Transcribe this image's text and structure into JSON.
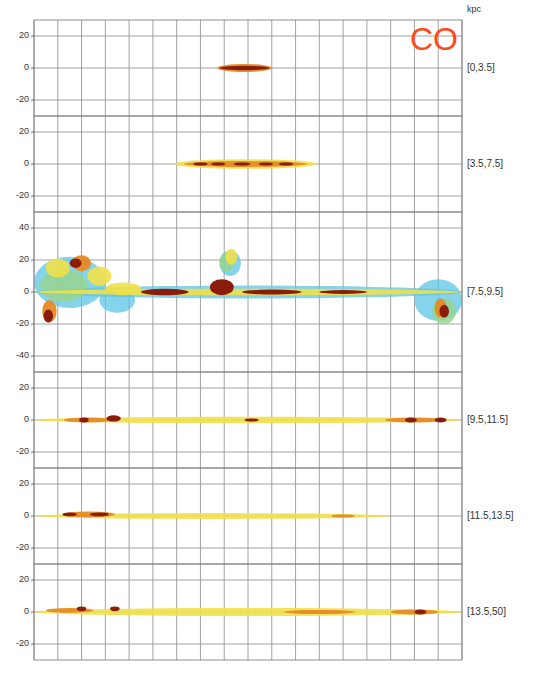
{
  "title": "CO",
  "unit_label": "kpc",
  "chart_data": [
    {
      "type": "map",
      "label": "[0,3.5]",
      "xlim": [
        180,
        -180
      ],
      "ylim": [
        -30,
        30
      ],
      "yticks": [
        -20,
        0,
        20
      ],
      "xticks": [
        180,
        160,
        140,
        120,
        100,
        80,
        60,
        40,
        20,
        0,
        -20,
        -40,
        -60,
        -80,
        -100,
        -120,
        -140,
        -160,
        -180
      ],
      "grid": true,
      "tick_labels": "y",
      "blobs": [
        {
          "l": 3,
          "b": 0,
          "dl": 23,
          "db": 2.5,
          "level": 4
        },
        {
          "l": 3,
          "b": 0,
          "dl": 21,
          "db": 1.4,
          "level": 5
        }
      ]
    },
    {
      "type": "map",
      "label": "[3.5,7.5]",
      "xlim": [
        180,
        -180
      ],
      "ylim": [
        -30,
        30
      ],
      "yticks": [
        -20,
        0,
        20
      ],
      "xticks": [
        180,
        160,
        140,
        120,
        100,
        80,
        60,
        40,
        20,
        0,
        -20,
        -40,
        -60,
        -80,
        -100,
        -120,
        -140,
        -160,
        -180
      ],
      "grid": true,
      "tick_labels": "y",
      "blobs": [
        {
          "l": 2,
          "b": 0,
          "dl": 60,
          "db": 3,
          "level": 3
        },
        {
          "l": 2,
          "b": 0,
          "dl": 52,
          "db": 1.8,
          "level": 4
        },
        {
          "l": 40,
          "b": 0,
          "dl": 6,
          "db": 1,
          "level": 5
        },
        {
          "l": 25,
          "b": 0,
          "dl": 6,
          "db": 1,
          "level": 5
        },
        {
          "l": 5,
          "b": 0,
          "dl": 7,
          "db": 1,
          "level": 5
        },
        {
          "l": -15,
          "b": 0,
          "dl": 6,
          "db": 1,
          "level": 5
        },
        {
          "l": -32,
          "b": 0,
          "dl": 6,
          "db": 1,
          "level": 5
        }
      ]
    },
    {
      "type": "map",
      "label": "[7.5,9.5]",
      "xlim": [
        180,
        -180
      ],
      "ylim": [
        -50,
        50
      ],
      "yticks": [
        -40,
        -20,
        0,
        20,
        40
      ],
      "xticks": [
        180,
        160,
        140,
        120,
        100,
        80,
        60,
        40,
        20,
        0,
        -20,
        -40,
        -60,
        -80,
        -100,
        -120,
        -140,
        -160,
        -180
      ],
      "grid": true,
      "tick_labels": "y",
      "blobs": [
        {
          "l": 150,
          "b": 6,
          "dl": 30,
          "db": 16,
          "level": 1
        },
        {
          "l": 110,
          "b": -5,
          "dl": 15,
          "db": 8,
          "level": 1
        },
        {
          "l": -160,
          "b": -5,
          "dl": 20,
          "db": 13,
          "level": 1
        },
        {
          "l": 15,
          "b": 18,
          "dl": 9,
          "db": 8,
          "level": 1
        },
        {
          "l": 0,
          "b": 0,
          "dl": 180,
          "db": 4,
          "level": 1
        },
        {
          "l": 18,
          "b": 19,
          "dl": 6,
          "db": 6,
          "level": 2
        },
        {
          "l": 155,
          "b": 4,
          "dl": 20,
          "db": 10,
          "level": 2
        },
        {
          "l": -165,
          "b": -12,
          "dl": 10,
          "db": 8,
          "level": 2
        },
        {
          "l": 160,
          "b": 15,
          "dl": 10,
          "db": 6,
          "level": 3
        },
        {
          "l": 125,
          "b": 10,
          "dl": 10,
          "db": 6,
          "level": 3
        },
        {
          "l": 105,
          "b": 2,
          "dl": 15,
          "db": 4,
          "level": 3
        },
        {
          "l": 14,
          "b": 22,
          "dl": 5,
          "db": 5,
          "level": 3
        },
        {
          "l": 0,
          "b": 0,
          "dl": 180,
          "db": 2,
          "level": 3
        },
        {
          "l": 167,
          "b": -12,
          "dl": 6,
          "db": 7,
          "level": 4
        },
        {
          "l": -162,
          "b": -10,
          "dl": 5,
          "db": 6,
          "level": 4
        },
        {
          "l": 140,
          "b": 18,
          "dl": 8,
          "db": 5,
          "level": 4
        },
        {
          "l": 70,
          "b": 0,
          "dl": 20,
          "db": 2,
          "level": 5
        },
        {
          "l": 22,
          "b": 3,
          "dl": 10,
          "db": 5,
          "level": 5
        },
        {
          "l": -20,
          "b": 0,
          "dl": 25,
          "db": 1.5,
          "level": 5
        },
        {
          "l": -80,
          "b": 0,
          "dl": 20,
          "db": 1.2,
          "level": 5
        },
        {
          "l": 168,
          "b": -15,
          "dl": 4,
          "db": 4,
          "level": 5
        },
        {
          "l": -165,
          "b": -12,
          "dl": 4,
          "db": 4,
          "level": 5
        },
        {
          "l": 145,
          "b": 18,
          "dl": 5,
          "db": 3,
          "level": 5
        }
      ]
    },
    {
      "type": "map",
      "label": "[9.5,11.5]",
      "xlim": [
        180,
        -180
      ],
      "ylim": [
        -30,
        30
      ],
      "yticks": [
        -20,
        0,
        20
      ],
      "xticks": [
        180,
        160,
        140,
        120,
        100,
        80,
        60,
        40,
        20,
        0,
        -20,
        -40,
        -60,
        -80,
        -100,
        -120,
        -140,
        -160,
        -180
      ],
      "grid": true,
      "tick_labels": "y",
      "blobs": [
        {
          "l": 0,
          "b": 0,
          "dl": 180,
          "db": 2,
          "level": 3
        },
        {
          "l": 135,
          "b": 0,
          "dl": 20,
          "db": 1.5,
          "level": 4
        },
        {
          "l": -140,
          "b": 0,
          "dl": 25,
          "db": 1.5,
          "level": 4
        },
        {
          "l": 138,
          "b": 0,
          "dl": 4,
          "db": 1.5,
          "level": 5
        },
        {
          "l": 113,
          "b": 1,
          "dl": 6,
          "db": 2,
          "level": 5
        },
        {
          "l": -3,
          "b": 0,
          "dl": 6,
          "db": 1,
          "level": 5
        },
        {
          "l": -137,
          "b": 0,
          "dl": 5,
          "db": 1.5,
          "level": 5
        },
        {
          "l": -162,
          "b": 0,
          "dl": 5,
          "db": 1.5,
          "level": 5
        }
      ]
    },
    {
      "type": "map",
      "label": "[11.5,13.5]",
      "xlim": [
        180,
        -180
      ],
      "ylim": [
        -30,
        30
      ],
      "yticks": [
        -20,
        0,
        20
      ],
      "xticks": [
        180,
        160,
        140,
        120,
        100,
        80,
        60,
        40,
        20,
        0,
        -20,
        -40,
        -60,
        -80,
        -100,
        -120,
        -140,
        -160,
        -180
      ],
      "grid": true,
      "tick_labels": "y",
      "blobs": [
        {
          "l": 30,
          "b": 0,
          "dl": 150,
          "db": 1.8,
          "level": 3
        },
        {
          "l": 134,
          "b": 1,
          "dl": 22,
          "db": 1.8,
          "level": 4
        },
        {
          "l": 150,
          "b": 1,
          "dl": 6,
          "db": 1.2,
          "level": 5
        },
        {
          "l": 125,
          "b": 1,
          "dl": 8,
          "db": 1.2,
          "level": 5
        },
        {
          "l": -80,
          "b": 0,
          "dl": 10,
          "db": 1,
          "level": 4
        }
      ]
    },
    {
      "type": "map",
      "label": "[13.5,50]",
      "xlim": [
        180,
        -180
      ],
      "ylim": [
        -30,
        30
      ],
      "yticks": [
        -20,
        0,
        20
      ],
      "xticks": [
        180,
        160,
        140,
        120,
        100,
        80,
        60,
        40,
        20,
        0,
        -20,
        -40,
        -60,
        -80,
        -100,
        -120,
        -140,
        -160,
        -180
      ],
      "grid": true,
      "tick_labels": "y",
      "blobs": [
        {
          "l": 0,
          "b": 0,
          "dl": 180,
          "db": 2.5,
          "level": 3
        },
        {
          "l": 150,
          "b": 1,
          "dl": 20,
          "db": 1.5,
          "level": 4
        },
        {
          "l": -60,
          "b": 0,
          "dl": 30,
          "db": 1.3,
          "level": 4
        },
        {
          "l": -140,
          "b": 0,
          "dl": 20,
          "db": 1.5,
          "level": 4
        },
        {
          "l": 140,
          "b": 2,
          "dl": 4,
          "db": 1.5,
          "level": 5
        },
        {
          "l": 112,
          "b": 2,
          "dl": 4,
          "db": 1.5,
          "level": 5
        },
        {
          "l": -145,
          "b": 0,
          "dl": 5,
          "db": 1.5,
          "level": 5
        }
      ]
    }
  ]
}
